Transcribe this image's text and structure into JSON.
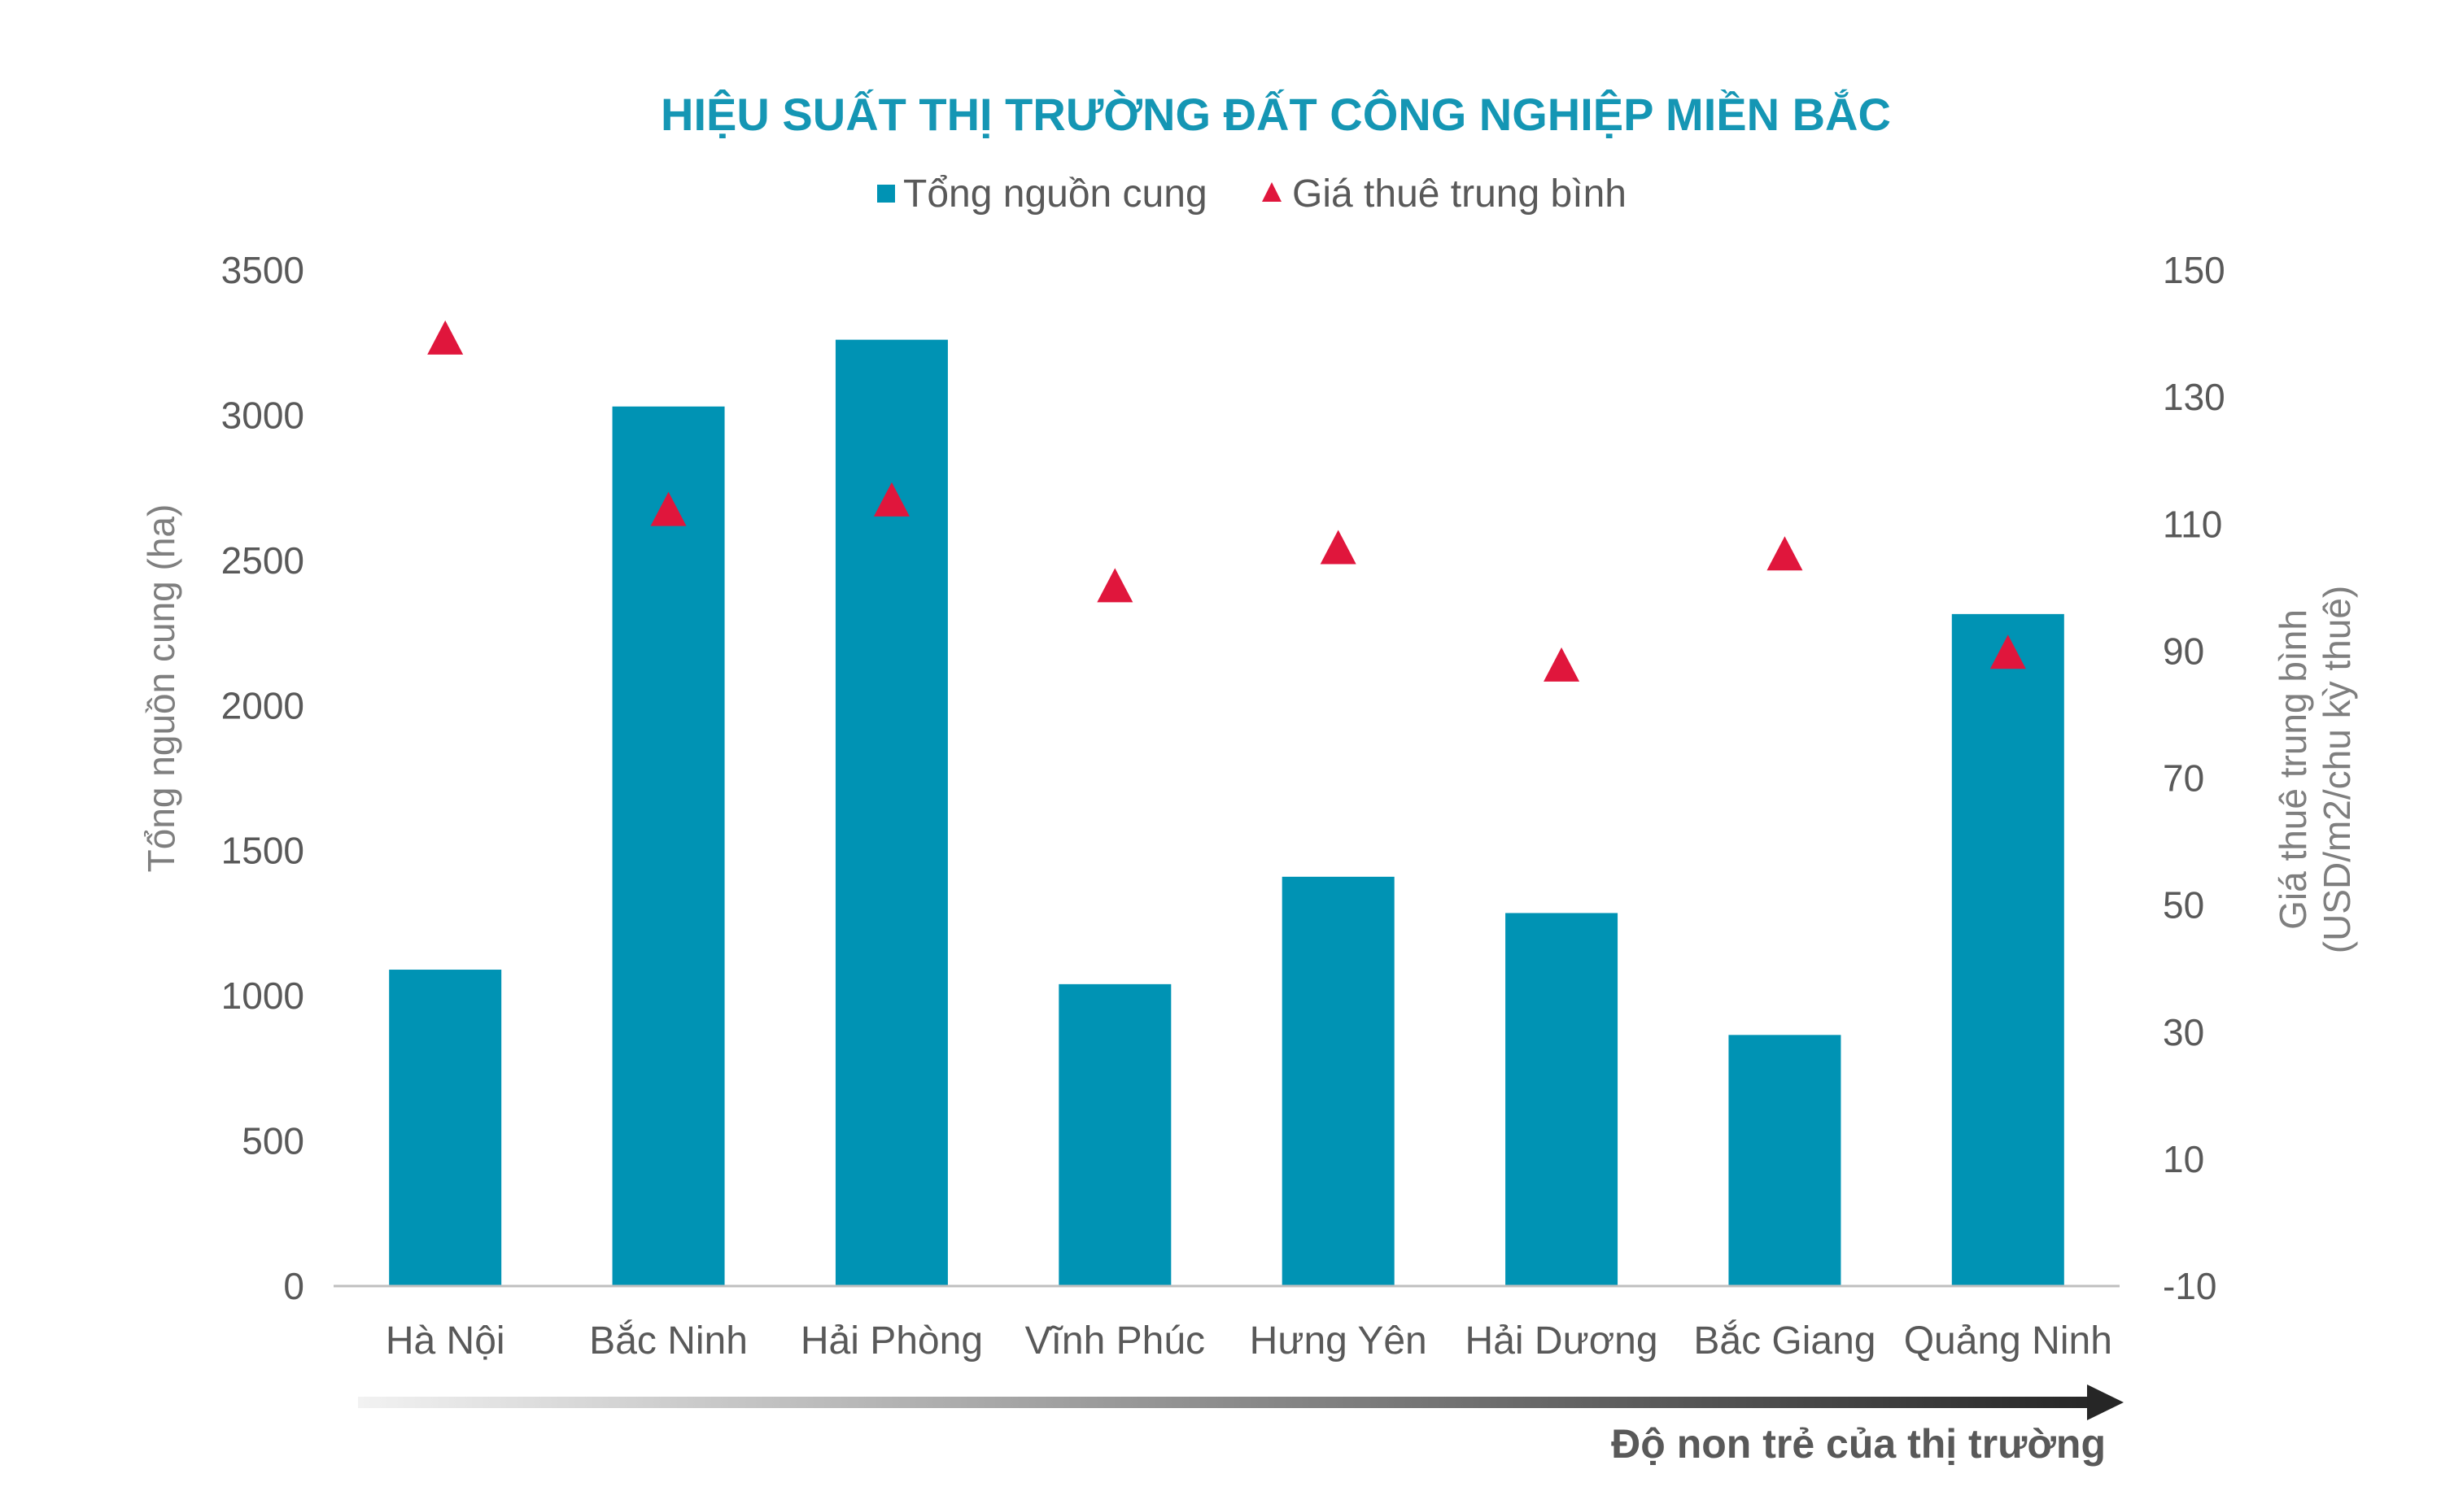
{
  "chart_data": {
    "type": "bar",
    "title": "HIỆU SUẤT THỊ TRƯỜNG ĐẤT CÔNG NGHIỆP MIỀN BẮC",
    "categories": [
      "Hà Nội",
      "Bắc Ninh",
      "Hải Phòng",
      "Vĩnh Phúc",
      "Hưng Yên",
      "Hải Dương",
      "Bắc Giang",
      "Quảng Ninh"
    ],
    "series": [
      {
        "name": "Tổng nguồn cung",
        "type": "bar",
        "axis": "left",
        "color": "#0093b4",
        "values": [
          1090,
          3030,
          3260,
          1040,
          1410,
          1285,
          865,
          2315
        ]
      },
      {
        "name": "Giá thuê trung bình",
        "type": "scatter",
        "marker": "triangle",
        "axis": "right",
        "color": "#e0163c",
        "values": [
          139,
          112,
          113.5,
          100,
          106,
          87.5,
          105,
          89.5
        ]
      }
    ],
    "y_left": {
      "label": "Tổng nguồn cung (ha)",
      "ylim": [
        0,
        3500
      ],
      "ticks": [
        "0",
        "500",
        "1000",
        "1500",
        "2000",
        "2500",
        "3000",
        "3500"
      ]
    },
    "y_right": {
      "label_line1": "Giá thuê trung bình",
      "label_line2": "(USD/m2/chu kỳ thuê)",
      "ylim": [
        -10,
        150
      ],
      "ticks": [
        "-10",
        "10",
        "30",
        "50",
        "70",
        "90",
        "110",
        "130",
        "150"
      ]
    },
    "grid": false,
    "legend": "top-center",
    "maturity_label": "Độ non trẻ của thị trường"
  }
}
